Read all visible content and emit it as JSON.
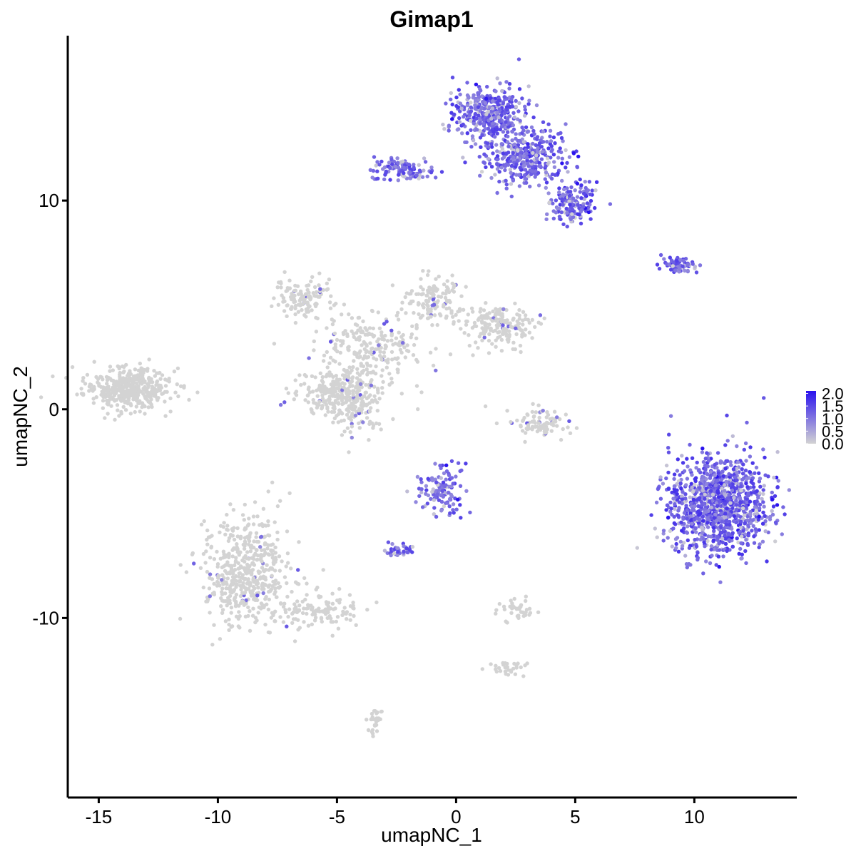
{
  "chart_data": {
    "type": "scatter",
    "title": "Gimap1",
    "xlabel": "umapNC_1",
    "ylabel": "umapNC_2",
    "xlim": [
      -16.3,
      14.3
    ],
    "ylim": [
      -18.6,
      17.9
    ],
    "x_ticks": [
      -15,
      -10,
      -5,
      0,
      5,
      10
    ],
    "x_tick_labels": [
      "-15",
      "-10",
      "-5",
      "0",
      "5",
      "10"
    ],
    "y_ticks": [
      -10,
      0,
      10
    ],
    "y_tick_labels": [
      "-10",
      "0",
      "10"
    ],
    "grid": false,
    "legend": {
      "placement": "right",
      "type": "colorbar",
      "min": 0.0,
      "max": 2.1,
      "ticks": [
        0.0,
        0.5,
        1.0,
        1.5,
        2.0
      ],
      "tick_labels": [
        "0.0",
        "0.5",
        "1.0",
        "1.5",
        "2.0"
      ],
      "low_color": "#d3d3d3",
      "high_color": "#2a12ee"
    },
    "clusters": [
      {
        "name": "far-left island",
        "cx": -13.8,
        "cy": 1.0,
        "sx": 0.9,
        "sy": 0.5,
        "n": 420,
        "expr": 0.0
      },
      {
        "name": "upper-left arm",
        "cx": -6.4,
        "cy": 5.3,
        "sx": 0.6,
        "sy": 0.5,
        "n": 120,
        "expr": 0.01
      },
      {
        "name": "upper-mid arm",
        "cx": -1.0,
        "cy": 5.2,
        "sx": 0.6,
        "sy": 0.6,
        "n": 130,
        "expr": 0.01
      },
      {
        "name": "upper-right arm",
        "cx": 1.8,
        "cy": 4.0,
        "sx": 0.8,
        "sy": 0.5,
        "n": 180,
        "expr": 0.01
      },
      {
        "name": "center hub",
        "cx": -3.5,
        "cy": 3.0,
        "sx": 1.1,
        "sy": 0.9,
        "n": 240,
        "expr": 0.01
      },
      {
        "name": "lower-center lobe left",
        "cx": -5.5,
        "cy": 0.8,
        "sx": 0.7,
        "sy": 0.5,
        "n": 140,
        "expr": 0.01
      },
      {
        "name": "lower-center lobe right",
        "cx": -4.3,
        "cy": 0.6,
        "sx": 0.6,
        "sy": 0.8,
        "n": 200,
        "expr": 0.01
      },
      {
        "name": "small crescent",
        "cx": 3.6,
        "cy": -0.7,
        "sx": 0.7,
        "sy": 0.4,
        "n": 90,
        "expr": 0.02
      },
      {
        "name": "lower-left triangle",
        "cx": -8.8,
        "cy": -7.8,
        "sx": 0.9,
        "sy": 1.3,
        "n": 520,
        "expr": 0.01
      },
      {
        "name": "lower-left tail",
        "cx": -5.8,
        "cy": -9.6,
        "sx": 1.0,
        "sy": 0.4,
        "n": 120,
        "expr": 0.0
      },
      {
        "name": "top cluster A",
        "cx": 1.3,
        "cy": 14.2,
        "sx": 0.7,
        "sy": 0.6,
        "n": 380,
        "expr": 0.92
      },
      {
        "name": "top cluster B",
        "cx": 2.9,
        "cy": 12.1,
        "sx": 0.9,
        "sy": 0.7,
        "n": 360,
        "expr": 0.92
      },
      {
        "name": "top cluster C",
        "cx": 4.9,
        "cy": 9.8,
        "sx": 0.5,
        "sy": 0.5,
        "n": 150,
        "expr": 0.95
      },
      {
        "name": "top-left arm",
        "cx": -2.3,
        "cy": 11.5,
        "sx": 0.6,
        "sy": 0.3,
        "n": 120,
        "expr": 0.9
      },
      {
        "name": "right strip",
        "cx": 9.4,
        "cy": 6.9,
        "sx": 0.4,
        "sy": 0.2,
        "n": 70,
        "expr": 0.85
      },
      {
        "name": "right big cluster",
        "cx": 11.0,
        "cy": -4.6,
        "sx": 1.0,
        "sy": 1.2,
        "n": 1100,
        "expr": 1.0
      },
      {
        "name": "middle-lower cluster",
        "cx": -0.6,
        "cy": -3.9,
        "sx": 0.5,
        "sy": 0.6,
        "n": 120,
        "expr": 0.85
      },
      {
        "name": "small blob left",
        "cx": -2.4,
        "cy": -6.8,
        "sx": 0.3,
        "sy": 0.15,
        "n": 40,
        "expr": 0.8
      },
      {
        "name": "small right gray",
        "cx": 2.4,
        "cy": -9.6,
        "sx": 0.4,
        "sy": 0.3,
        "n": 40,
        "expr": 0.02
      },
      {
        "name": "bottom strip",
        "cx": 2.3,
        "cy": -12.4,
        "sx": 0.5,
        "sy": 0.15,
        "n": 30,
        "expr": 0.0
      },
      {
        "name": "bottom blob",
        "cx": -3.4,
        "cy": -14.8,
        "sx": 0.15,
        "sy": 0.4,
        "n": 30,
        "expr": 0.0
      }
    ]
  }
}
